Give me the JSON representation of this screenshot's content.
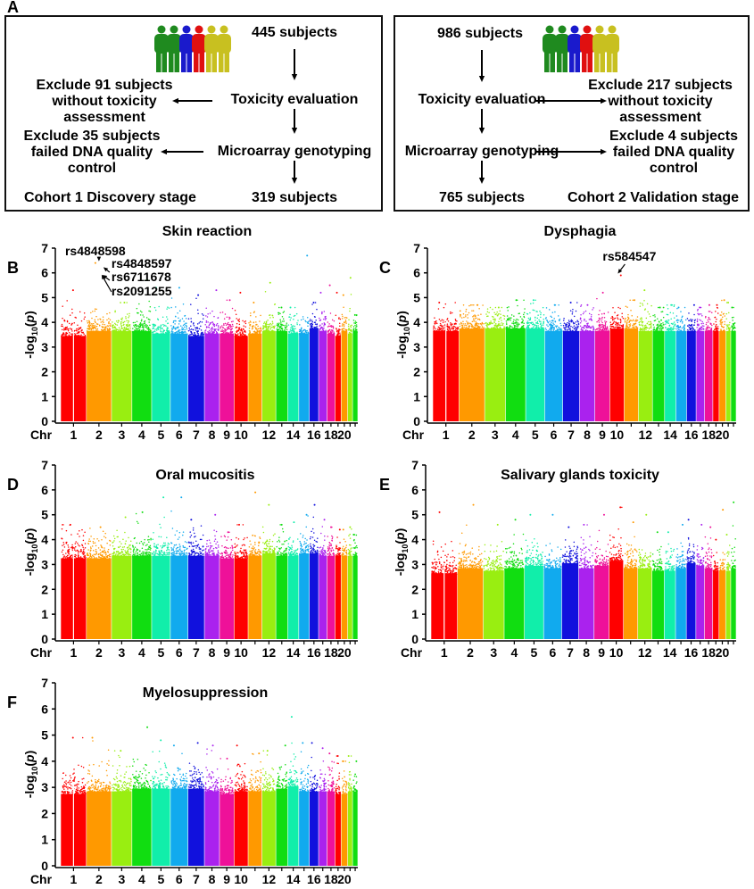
{
  "panel_labels": [
    "A",
    "B",
    "C",
    "D",
    "E",
    "F"
  ],
  "flowchart": {
    "cohort1": {
      "start": "445 subjects",
      "step1": "Toxicity evaluation",
      "step2": "Microarray genotyping",
      "end": "319 subjects",
      "exclude1": [
        "Exclude 91 subjects",
        "without toxicity",
        "assessment"
      ],
      "exclude2": [
        "Exclude 35 subjects",
        "failed DNA quality",
        "control"
      ],
      "stage": "Cohort 1 Discovery stage"
    },
    "cohort2": {
      "start": "986 subjects",
      "step1": "Toxicity evaluation",
      "step2": "Microarray genotyping",
      "end": "765 subjects",
      "exclude1": [
        "Exclude 217 subjects",
        "without toxicity",
        "assessment"
      ],
      "exclude2": [
        "Exclude 4 subjects",
        "failed DNA quality",
        "control"
      ],
      "stage": "Cohort 2 Validation stage"
    },
    "people_colors": [
      "#1f8a1f",
      "#1f8a1f",
      "#1a1acc",
      "#e01010",
      "#c8c020",
      "#c8c020"
    ]
  },
  "chart_data": [
    {
      "type": "scatter",
      "subtype": "manhattan",
      "panel": "B",
      "title": "Skin reaction",
      "ylabel": "-log10(p)",
      "ylim": [
        0,
        7
      ],
      "yticks": [
        0,
        1,
        2,
        3,
        4,
        5,
        6,
        7
      ],
      "xlabel_prefix": "Chr",
      "xticks": [
        "1",
        "2",
        "3",
        "4",
        "5",
        "6",
        "7",
        "8",
        "9",
        "10",
        "12",
        "14",
        "16",
        "18",
        "20"
      ],
      "band_level": [
        3.6,
        3.8,
        3.8,
        3.8,
        3.7,
        3.7,
        3.6,
        3.7,
        3.7,
        3.6,
        3.7,
        3.8,
        3.8,
        3.7,
        3.7,
        3.9,
        3.8,
        3.7,
        3.6,
        3.8,
        3.7,
        3.8
      ],
      "peak": [
        5.3,
        6.4,
        4.8,
        5.7,
        5.4,
        5.4,
        5.1,
        5.3,
        4.9,
        5.2,
        4.8,
        5.6,
        4.6,
        4.6,
        6.7,
        4.8,
        5.2,
        5.5,
        5.2,
        5.1,
        5.8,
        4.3
      ],
      "annotations": [
        {
          "label": "rs4848598",
          "chr": 2,
          "y": 6.4
        },
        {
          "label": "rs4848597",
          "chr": 2,
          "y": 6.3
        },
        {
          "label": "rs6711678",
          "chr": 2,
          "y": 6.1
        },
        {
          "label": "rs2091255",
          "chr": 2,
          "y": 6.0
        }
      ]
    },
    {
      "type": "scatter",
      "subtype": "manhattan",
      "panel": "C",
      "title": "Dysphagia",
      "ylabel": "-log10(p)",
      "ylim": [
        0,
        7
      ],
      "yticks": [
        0,
        1,
        2,
        3,
        4,
        5,
        6,
        7
      ],
      "xlabel_prefix": "Chr",
      "xticks": [
        "1",
        "2",
        "3",
        "4",
        "5",
        "6",
        "7",
        "8",
        "9",
        "10",
        "12",
        "14",
        "16",
        "18",
        "20"
      ],
      "band_level": [
        3.8,
        3.9,
        3.9,
        3.9,
        3.9,
        3.8,
        3.8,
        3.8,
        3.8,
        3.9,
        3.9,
        3.8,
        3.8,
        3.8,
        3.8,
        3.8,
        3.8,
        3.8,
        3.8,
        3.8,
        3.8,
        3.8
      ],
      "peak": [
        4.8,
        4.7,
        4.6,
        4.9,
        4.9,
        4.7,
        4.8,
        4.7,
        5.2,
        5.9,
        4.9,
        5.3,
        4.6,
        4.7,
        4.6,
        4.7,
        4.6,
        4.7,
        4.7,
        4.9,
        4.8,
        4.6
      ],
      "annotations": [
        {
          "label": "rs584547",
          "chr": 10,
          "y": 5.9
        }
      ]
    },
    {
      "type": "scatter",
      "subtype": "manhattan",
      "panel": "D",
      "title": "Oral mucositis",
      "ylabel": "-log10(p)",
      "ylim": [
        0,
        7
      ],
      "yticks": [
        0,
        1,
        2,
        3,
        4,
        5,
        6,
        7
      ],
      "xlabel_prefix": "Chr",
      "xticks": [
        "1",
        "2",
        "3",
        "4",
        "5",
        "6",
        "7",
        "8",
        "9",
        "10",
        "12",
        "14",
        "16",
        "18",
        "20"
      ],
      "band_level": [
        3.4,
        3.4,
        3.5,
        3.5,
        3.5,
        3.5,
        3.5,
        3.5,
        3.4,
        3.4,
        3.5,
        3.6,
        3.5,
        3.5,
        3.6,
        3.6,
        3.5,
        3.5,
        3.5,
        3.5,
        3.5,
        3.5
      ],
      "peak": [
        4.6,
        4.5,
        4.9,
        5.1,
        5.7,
        5.7,
        4.8,
        5.0,
        4.3,
        4.6,
        5.9,
        5.4,
        4.6,
        4.7,
        5.0,
        5.4,
        4.8,
        4.5,
        4.4,
        4.4,
        4.5,
        4.2
      ],
      "annotations": []
    },
    {
      "type": "scatter",
      "subtype": "manhattan",
      "panel": "E",
      "title": "Salivary glands toxicity",
      "ylabel": "-log10(p)",
      "ylim": [
        0,
        7
      ],
      "yticks": [
        0,
        1,
        2,
        3,
        4,
        5,
        6,
        7
      ],
      "xlabel_prefix": "Chr",
      "xticks": [
        "1",
        "2",
        "3",
        "4",
        "5",
        "6",
        "7",
        "8",
        "9",
        "10",
        "12",
        "14",
        "16",
        "18",
        "20"
      ],
      "band_level": [
        2.8,
        3.0,
        2.9,
        3.0,
        3.1,
        3.0,
        3.2,
        3.0,
        3.1,
        3.3,
        3.0,
        3.0,
        2.9,
        2.9,
        3.0,
        3.2,
        3.1,
        3.0,
        2.9,
        2.9,
        2.9,
        3.0
      ],
      "peak": [
        5.1,
        5.4,
        4.6,
        4.8,
        5.0,
        5.0,
        4.5,
        4.6,
        5.0,
        5.3,
        4.7,
        5.0,
        4.3,
        4.3,
        4.6,
        4.8,
        4.6,
        4.5,
        4.0,
        5.2,
        4.2,
        5.5
      ],
      "annotations": []
    },
    {
      "type": "scatter",
      "subtype": "manhattan",
      "panel": "F",
      "title": "Myelosuppression",
      "ylabel": "-log10(p)",
      "ylim": [
        0,
        7
      ],
      "yticks": [
        0,
        1,
        2,
        3,
        4,
        5,
        6,
        7
      ],
      "xlabel_prefix": "Chr",
      "xticks": [
        "1",
        "2",
        "3",
        "4",
        "5",
        "6",
        "7",
        "8",
        "9",
        "10",
        "12",
        "14",
        "16",
        "18",
        "20"
      ],
      "band_level": [
        2.9,
        3.0,
        3.0,
        3.1,
        3.1,
        3.1,
        3.1,
        3.0,
        2.9,
        3.0,
        3.0,
        3.0,
        3.1,
        3.2,
        3.0,
        3.0,
        3.0,
        3.0,
        2.9,
        2.9,
        3.0,
        3.0
      ],
      "peak": [
        4.9,
        4.9,
        4.4,
        5.3,
        4.8,
        4.6,
        4.7,
        4.6,
        4.1,
        4.6,
        4.3,
        4.4,
        4.6,
        5.7,
        4.7,
        4.7,
        4.5,
        4.3,
        4.2,
        4.0,
        4.2,
        4.0
      ],
      "annotations": []
    }
  ],
  "chromosome_colors": [
    "#ff0000",
    "#ff9900",
    "#99ee11",
    "#11dd11",
    "#11eeaa",
    "#11aaee",
    "#1111dd",
    "#aa22ee",
    "#ee1199"
  ]
}
